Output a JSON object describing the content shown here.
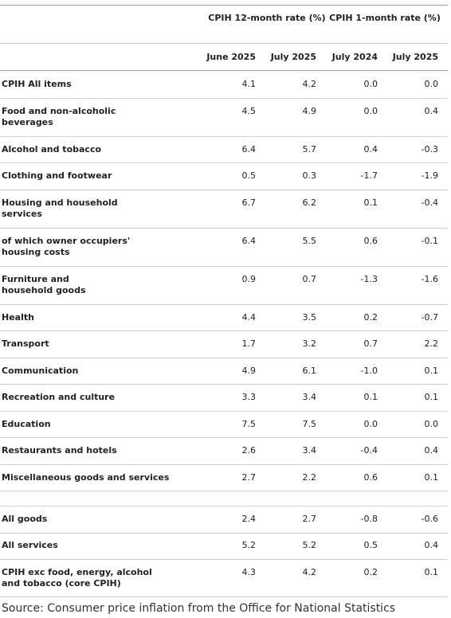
{
  "table": {
    "group_headers": [
      "CPIH 12-month rate (%)",
      "CPIH 1-month rate (%)"
    ],
    "sub_headers": [
      "June 2025",
      "July 2025",
      "July 2024",
      "July 2025"
    ],
    "rows": [
      {
        "label": "CPIH All items",
        "values": [
          "4.1",
          "4.2",
          "0.0",
          "0.0"
        ]
      },
      {
        "label": "Food and non-alcoholic beverages",
        "values": [
          "4.5",
          "4.9",
          "0.0",
          "0.4"
        ]
      },
      {
        "label": "Alcohol and tobacco",
        "values": [
          "6.4",
          "5.7",
          "0.4",
          "-0.3"
        ]
      },
      {
        "label": "Clothing and footwear",
        "values": [
          "0.5",
          "0.3",
          "-1.7",
          "-1.9"
        ]
      },
      {
        "label": "Housing and household services",
        "values": [
          "6.7",
          "6.2",
          "0.1",
          "-0.4"
        ]
      },
      {
        "label": "of which owner occupiers' housing costs",
        "values": [
          "6.4",
          "5.5",
          "0.6",
          "-0.1"
        ]
      },
      {
        "label": "Furniture and household goods",
        "values": [
          "0.9",
          "0.7",
          "-1.3",
          "-1.6"
        ]
      },
      {
        "label": "Health",
        "values": [
          "4.4",
          "3.5",
          "0.2",
          "-0.7"
        ]
      },
      {
        "label": "Transport",
        "values": [
          "1.7",
          "3.2",
          "0.7",
          "2.2"
        ]
      },
      {
        "label": "Communication",
        "values": [
          "4.9",
          "6.1",
          "-1.0",
          "0.1"
        ]
      },
      {
        "label": "Recreation and culture",
        "values": [
          "3.3",
          "3.4",
          "0.1",
          "0.1"
        ]
      },
      {
        "label": "Education",
        "values": [
          "7.5",
          "7.5",
          "0.0",
          "0.0"
        ]
      },
      {
        "label": "Restaurants and hotels",
        "values": [
          "2.6",
          "3.4",
          "-0.4",
          "0.4"
        ]
      },
      {
        "label": "Miscellaneous goods and services",
        "values": [
          "2.7",
          "2.2",
          "0.6",
          "0.1"
        ]
      },
      {
        "label": "All goods",
        "values": [
          "2.4",
          "2.7",
          "-0.8",
          "-0.6"
        ]
      },
      {
        "label": "All services",
        "values": [
          "5.2",
          "5.2",
          "0.5",
          "0.4"
        ]
      },
      {
        "label": "CPIH exc food, energy, alcohol and tobacco (core CPIH)",
        "values": [
          "4.3",
          "4.2",
          "0.2",
          "0.1"
        ]
      }
    ]
  },
  "source": "Source: Consumer price inflation from the Office for National Statistics"
}
